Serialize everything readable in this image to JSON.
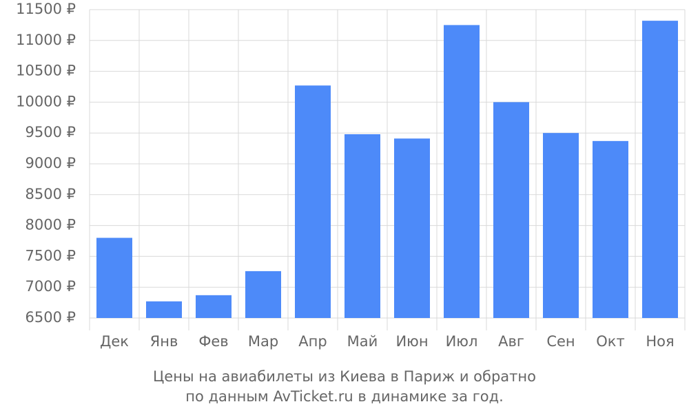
{
  "chart_data": {
    "type": "bar",
    "categories": [
      "Дек",
      "Янв",
      "Фев",
      "Мар",
      "Апр",
      "Май",
      "Июн",
      "Июл",
      "Авг",
      "Сен",
      "Окт",
      "Ноя"
    ],
    "values": [
      7800,
      6770,
      6870,
      7260,
      10270,
      9480,
      9410,
      11250,
      10000,
      9500,
      9370,
      11320
    ],
    "color": "#4d8af9",
    "ylim": [
      6500,
      11500
    ],
    "yticks": [
      {
        "value": 6500,
        "label": "6500 ₽"
      },
      {
        "value": 7000,
        "label": "7000 ₽"
      },
      {
        "value": 7500,
        "label": "7500 ₽"
      },
      {
        "value": 8000,
        "label": "8000 ₽"
      },
      {
        "value": 8500,
        "label": "8500 ₽"
      },
      {
        "value": 9000,
        "label": "9000 ₽"
      },
      {
        "value": 9500,
        "label": "9500 ₽"
      },
      {
        "value": 10000,
        "label": "10000 ₽"
      },
      {
        "value": 10500,
        "label": "10500 ₽"
      },
      {
        "value": 11000,
        "label": "11000 ₽"
      },
      {
        "value": 11500,
        "label": "11500 ₽"
      }
    ],
    "grid": true,
    "caption": [
      "Цены на авиабилеты из Киева в Париж и обратно",
      "по данным AvTicket.ru в динамике за год."
    ]
  }
}
